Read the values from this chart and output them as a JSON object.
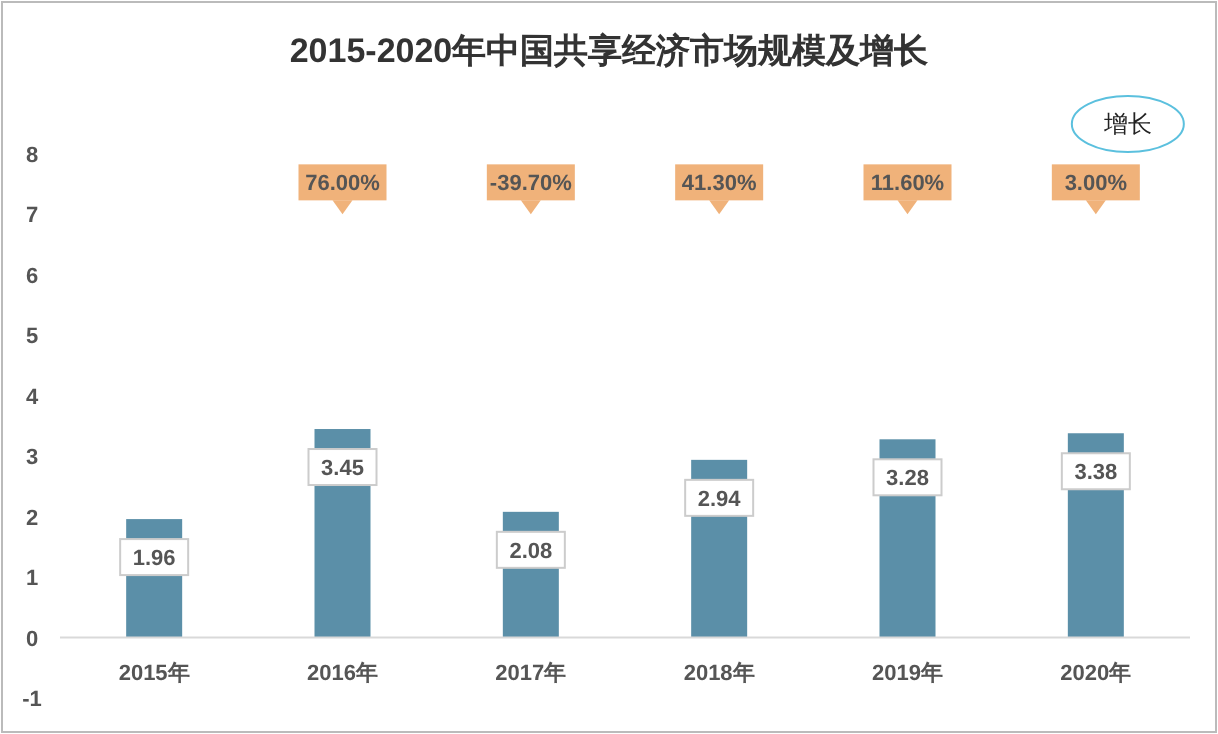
{
  "chart_data": {
    "type": "bar",
    "title": "2015-2020年中国共享经济市场规模及增长",
    "categories": [
      "2015年",
      "2016年",
      "2017年",
      "2018年",
      "2019年",
      "2020年"
    ],
    "values": [
      1.96,
      3.45,
      2.08,
      2.94,
      3.28,
      3.38
    ],
    "color": "#5b8fa8",
    "ylim": [
      -1,
      8
    ],
    "yticks": [
      -1,
      0,
      1,
      2,
      3,
      4,
      5,
      6,
      7,
      8
    ],
    "grid": false,
    "data_labels": true,
    "annotations": [
      {
        "text": "76.00%",
        "x": "2016年",
        "y": 7.2
      },
      {
        "text": "-39.70%",
        "x": "2017年",
        "y": 7.2
      },
      {
        "text": "41.30%",
        "x": "2018年",
        "y": 7.2
      },
      {
        "text": "11.60%",
        "x": "2019年",
        "y": 7.2
      },
      {
        "text": "3.00%",
        "x": "2020年",
        "y": 7.2
      },
      "增长"
    ]
  }
}
